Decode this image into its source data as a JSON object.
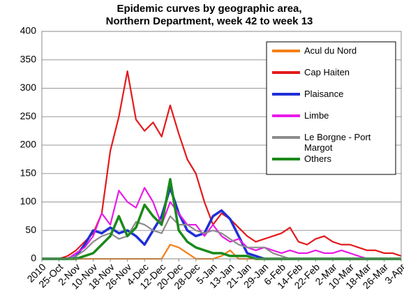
{
  "chart_data": {
    "type": "line",
    "title": [
      "Epidemic curves by geographic area,",
      "Northern Department, week 42 to week 13"
    ],
    "categories": [
      "2010",
      null,
      "25-Oct",
      null,
      "2-Nov",
      null,
      "10-Nov",
      null,
      "18-Nov",
      null,
      "26-Nov",
      null,
      "4-Dec",
      null,
      "12-Dec",
      null,
      "20-Dec",
      null,
      "28-Dec",
      null,
      "5-Jan",
      null,
      "13-Jan",
      null,
      "21-Jan",
      null,
      "29-Jan",
      null,
      "6-Feb",
      null,
      "14-Feb",
      null,
      "22-Feb",
      null,
      "2-Mar",
      null,
      "10-Mar",
      null,
      "18-Mar",
      null,
      "26-Mar",
      null,
      "3-Apr"
    ],
    "ylim": [
      0,
      400
    ],
    "yticks": [
      0,
      50,
      100,
      150,
      200,
      250,
      300,
      350,
      400
    ],
    "grid": true,
    "legend": "top-right",
    "series": [
      {
        "name": "Acul du Nord",
        "color": "#f57f17",
        "values": [
          0,
          0,
          0,
          0,
          0,
          0,
          0,
          0,
          0,
          0,
          0,
          0,
          0,
          0,
          0,
          25,
          20,
          10,
          0,
          0,
          0,
          5,
          15,
          0,
          0,
          0,
          0,
          0,
          0,
          0,
          0,
          0,
          0,
          0,
          0,
          0,
          0,
          0,
          0,
          0,
          0,
          0,
          0
        ]
      },
      {
        "name": "Cap Haiten",
        "color": "#e31a1c",
        "values": [
          0,
          0,
          0,
          5,
          15,
          30,
          45,
          80,
          190,
          250,
          330,
          245,
          225,
          240,
          215,
          270,
          220,
          175,
          150,
          100,
          60,
          80,
          70,
          55,
          40,
          30,
          35,
          40,
          45,
          55,
          30,
          25,
          35,
          40,
          30,
          25,
          25,
          20,
          15,
          15,
          10,
          10,
          5
        ]
      },
      {
        "name": "Plaisance",
        "color": "#1f2fd6",
        "values": [
          0,
          0,
          0,
          0,
          5,
          25,
          50,
          45,
          55,
          45,
          50,
          40,
          25,
          50,
          75,
          125,
          80,
          50,
          40,
          45,
          75,
          85,
          70,
          40,
          10,
          5,
          0,
          0,
          0,
          0,
          0,
          0,
          0,
          0,
          0,
          0,
          0,
          0,
          0,
          0,
          0,
          0,
          0
        ]
      },
      {
        "name": "Limbe",
        "color": "#e81be8",
        "values": [
          0,
          0,
          0,
          0,
          10,
          20,
          40,
          80,
          60,
          120,
          100,
          90,
          125,
          100,
          60,
          100,
          80,
          60,
          60,
          40,
          60,
          40,
          30,
          35,
          20,
          15,
          20,
          15,
          10,
          15,
          10,
          10,
          15,
          10,
          10,
          15,
          10,
          5,
          0,
          0,
          0,
          0,
          0
        ]
      },
      {
        "name": "Le Borgne - Port Margot",
        "color": "#8c8c8c",
        "values": [
          0,
          0,
          0,
          0,
          5,
          15,
          30,
          40,
          45,
          35,
          40,
          65,
          60,
          50,
          45,
          75,
          60,
          60,
          50,
          45,
          50,
          45,
          35,
          25,
          20,
          20,
          20,
          10,
          5,
          0,
          0,
          0,
          0,
          0,
          0,
          0,
          0,
          0,
          0,
          0,
          0,
          0,
          0
        ]
      },
      {
        "name": "Others",
        "color": "#1a8a1a",
        "values": [
          0,
          0,
          0,
          0,
          0,
          5,
          10,
          25,
          40,
          75,
          40,
          55,
          95,
          75,
          60,
          140,
          50,
          30,
          20,
          15,
          10,
          10,
          5,
          5,
          5,
          0,
          0,
          0,
          0,
          0,
          0,
          0,
          0,
          0,
          0,
          0,
          0,
          0,
          0,
          0,
          0,
          0,
          0
        ]
      }
    ]
  }
}
